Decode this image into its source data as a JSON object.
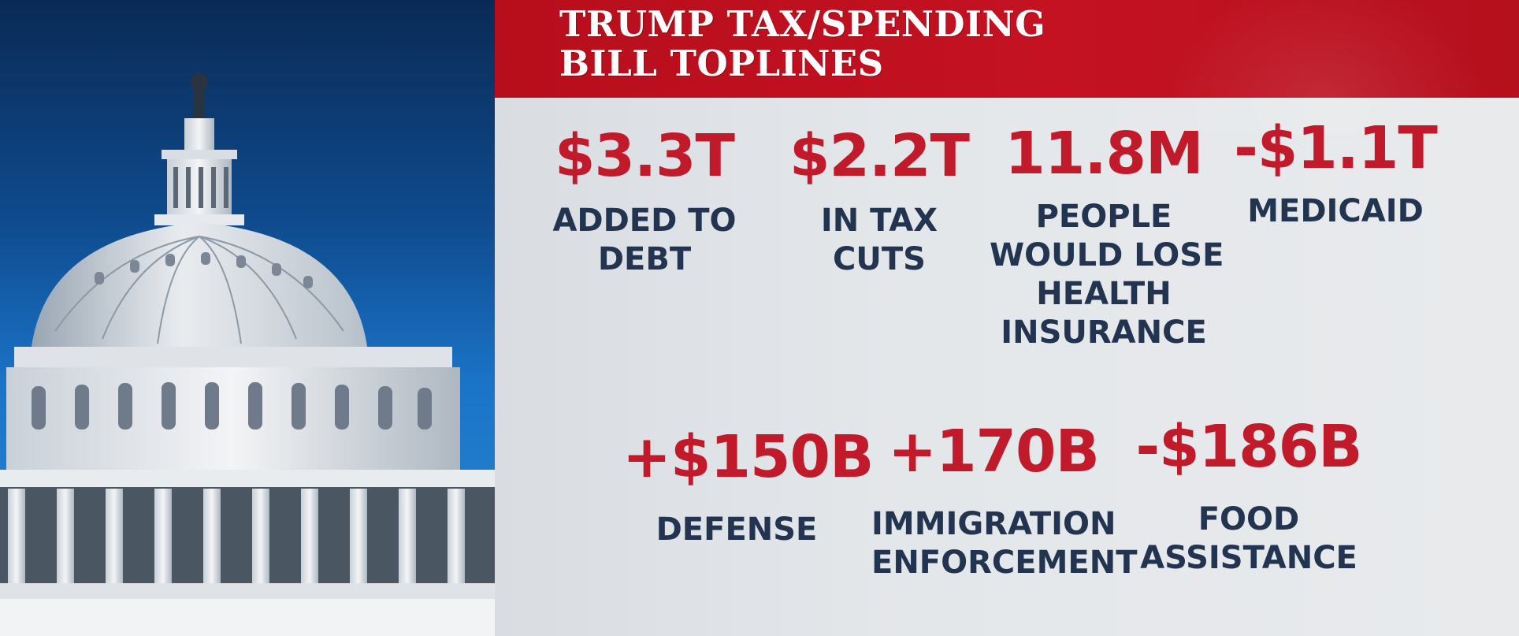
{
  "banner": {
    "title_line1": "TRUMP TAX/SPENDING",
    "title_line2": "BILL TOPLINES"
  },
  "colors": {
    "banner_red": "#c41222",
    "value_red": "#c11a2b",
    "label_navy": "#22344f",
    "panel_bg": "#e6e8eb"
  },
  "stats": [
    {
      "value": "$3.3T",
      "label_lines": [
        "ADDED TO",
        "DEBT"
      ]
    },
    {
      "value": "$2.2T",
      "label_lines": [
        "IN TAX",
        "CUTS"
      ]
    },
    {
      "value": "11.8M",
      "label_lines": [
        "PEOPLE",
        "WOULD LOSE",
        "HEALTH",
        "INSURANCE"
      ]
    },
    {
      "value": "-$1.1T",
      "label_lines": [
        "MEDICAID"
      ]
    },
    {
      "value": "+$150B",
      "label_lines": [
        "DEFENSE"
      ]
    },
    {
      "value": "+170B",
      "label_lines": [
        "IMMIGRATION",
        "ENFORCEMENT"
      ]
    },
    {
      "value": "-$186B",
      "label_lines": [
        "FOOD",
        "ASSISTANCE"
      ]
    }
  ]
}
